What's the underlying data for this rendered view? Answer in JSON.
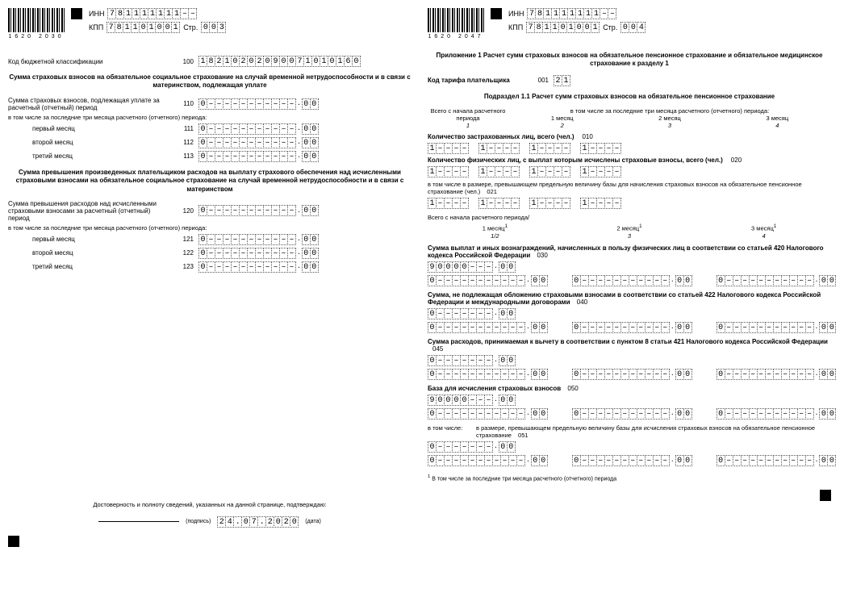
{
  "barcode_left": "1620  2030",
  "barcode_right": "1620  2047",
  "inn_label": "ИНН",
  "kpp_label": "КПП",
  "str_label": "Стр.",
  "inn": [
    "7",
    "8",
    "1",
    "1",
    "1",
    "1",
    "1",
    "1",
    "1",
    "–",
    "–"
  ],
  "kpp": [
    "7",
    "8",
    "1",
    "1",
    "0",
    "1",
    "0",
    "0",
    "1"
  ],
  "page_left": [
    "0",
    "0",
    "3"
  ],
  "page_right": [
    "0",
    "0",
    "4"
  ],
  "left": {
    "kbk_label": "Код бюджетной классификации",
    "kbk_code": "100",
    "kbk": [
      "1",
      "8",
      "2",
      "1",
      "0",
      "2",
      "0",
      "2",
      "0",
      "9",
      "0",
      "0",
      "7",
      "1",
      "0",
      "1",
      "0",
      "1",
      "6",
      "0"
    ],
    "title1": "Сумма страховых взносов на обязательное социальное страхование на случай временной нетрудоспособности и в связи с материнством, подлежащая уплате",
    "r110_label": "Сумма страховых взносов, подлежащая уплате за расчетный (отчетный) период",
    "r110_code": "110",
    "sub_note": "в том числе за последние три месяца расчетного (отчетного) периода:",
    "m1": "первый месяц",
    "m1_code": "111",
    "m2": "второй месяц",
    "m2_code": "112",
    "m3": "третий месяц",
    "m3_code": "113",
    "title2": "Сумма превышения произведенных плательщиком расходов на выплату страхового обеспечения над исчисленными страховыми взносами на обязательное социальное страхование на случай временной нетрудоспособности и в связи с материнством",
    "r120_label": "Сумма превышения расходов над исчисленными страховыми взносами за расчетный (отчетный) период",
    "r120_code": "120",
    "m1b_code": "121",
    "m2b_code": "122",
    "m3b_code": "123",
    "amount_main": [
      "0",
      "–",
      "–",
      "–",
      "–",
      "–",
      "–",
      "–",
      "–",
      "–",
      "–",
      "–"
    ],
    "amount_kop": [
      "0",
      "0"
    ],
    "footer_text": "Достоверность и полноту сведений, указанных на данной странице, подтверждаю:",
    "sig_label": "(подпись)",
    "date": [
      "2",
      "4",
      ".",
      "0",
      "7",
      ".",
      "2",
      "0",
      "2",
      "0"
    ],
    "date_label": "(дата)"
  },
  "right": {
    "title": "Приложение 1 Расчет сумм страховых взносов на обязательное пенсионное страхование и обязательное медицинское страхование к разделу 1",
    "tariff_label": "Код тарифа плательщика",
    "tariff_code": "001",
    "tariff": [
      "2",
      "1"
    ],
    "subtitle": "Подраздел 1.1 Расчет сумм страховых взносов на обязательное пенсионное страхование",
    "period_header_left": "Всего с начала расчетного периода",
    "period_header_right": "в том числе за последние три месяца расчетного (отчетного) периода:",
    "col1": "1",
    "col2": "1 месяц",
    "col2n": "2",
    "col3": "2 месяц",
    "col3n": "3",
    "col4": "3 месяц",
    "col4n": "4",
    "r010_label": "Количество застрахованных лиц, всего (чел.)",
    "r010_code": "010",
    "count_cells": [
      "1",
      "–",
      "–",
      "–",
      "–"
    ],
    "r020_label": "Количество физических лиц, с выплат которым исчислены страховые взносы, всего (чел.)",
    "r020_code": "020",
    "r021_label": "в том числе в размере, превышающем предельную величину базы для начисления страховых взносов на обязательное пенсионное страхование (чел.)",
    "r021_code": "021",
    "count_cells_empty": [
      "1",
      "–",
      "–",
      "–",
      "–"
    ],
    "period_row2": "Всего с начала расчетного периода/",
    "m1_sup": "1 месяц",
    "m1_sub": "1/2",
    "m2_sup": "2 месяц",
    "m2_sub": "3",
    "m3_sup": "3 месяц",
    "m3_sub": "4",
    "r030_label": "Сумма выплат и иных вознаграждений, начисленных в пользу физических лиц в соответствии со статьей 420 Налогового кодекса Российской Федерации",
    "r030_code": "030",
    "r040_label": "Сумма, не подлежащая обложению страховыми взносами в соответствии со статьей 422 Налогового кодекса Российской Федерации и международными договорами",
    "r040_code": "040",
    "r045_label": "Сумма расходов, принимаемая к вычету в соответствии с пунктом 8 статьи 421 Налогового кодекса Российской Федерации",
    "r045_code": "045",
    "r050_label": "База для исчисления страховых взносов",
    "r050_code": "050",
    "r051_label_pre": "в том числе:",
    "r051_label": "в размере, превышающем предельную величину базы для исчисления страховых взносов на обязательное пенсионное страхование",
    "r051_code": "051",
    "amt_90000": [
      "9",
      "0",
      "0",
      "0",
      "0",
      "–",
      "–",
      "–"
    ],
    "amt_0": [
      "0",
      "–",
      "–",
      "–",
      "–",
      "–",
      "–",
      "–"
    ],
    "amt_0_long": [
      "0",
      "–",
      "–",
      "–",
      "–",
      "–",
      "–",
      "–",
      "–",
      "–",
      "–",
      "–"
    ],
    "kop": [
      "0",
      "0"
    ],
    "footnote": "В том числе за последние три месяца расчетного (отчетного) периода"
  }
}
